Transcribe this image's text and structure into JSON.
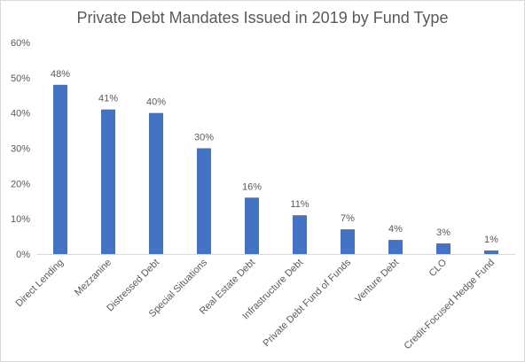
{
  "chart_data": {
    "type": "bar",
    "title": "Private Debt Mandates Issued in 2019 by Fund Type",
    "xlabel": "",
    "ylabel": "",
    "categories": [
      "Direct Lending",
      "Mezzanine",
      "Distressed Debt",
      "Special Situations",
      "Real Estate Debt",
      "Infrastructure Debt",
      "Private Debt Fund of Funds",
      "Venture Debt",
      "CLO",
      "Credit-Focused Hedge Fund"
    ],
    "values": [
      48,
      41,
      40,
      30,
      16,
      11,
      7,
      4,
      3,
      1
    ],
    "data_labels": [
      "48%",
      "41%",
      "40%",
      "30%",
      "16%",
      "11%",
      "7%",
      "4%",
      "3%",
      "1%"
    ],
    "y_ticks": [
      0,
      10,
      20,
      30,
      40,
      50,
      60
    ],
    "y_tick_labels": [
      "0%",
      "10%",
      "20%",
      "30%",
      "40%",
      "50%",
      "60%"
    ],
    "ylim": [
      0,
      60
    ],
    "grid": false,
    "legend": "none",
    "colors": {
      "bar": "#4472c4",
      "axis": "#d9d9d9",
      "text": "#595959",
      "title": "#595959"
    }
  }
}
